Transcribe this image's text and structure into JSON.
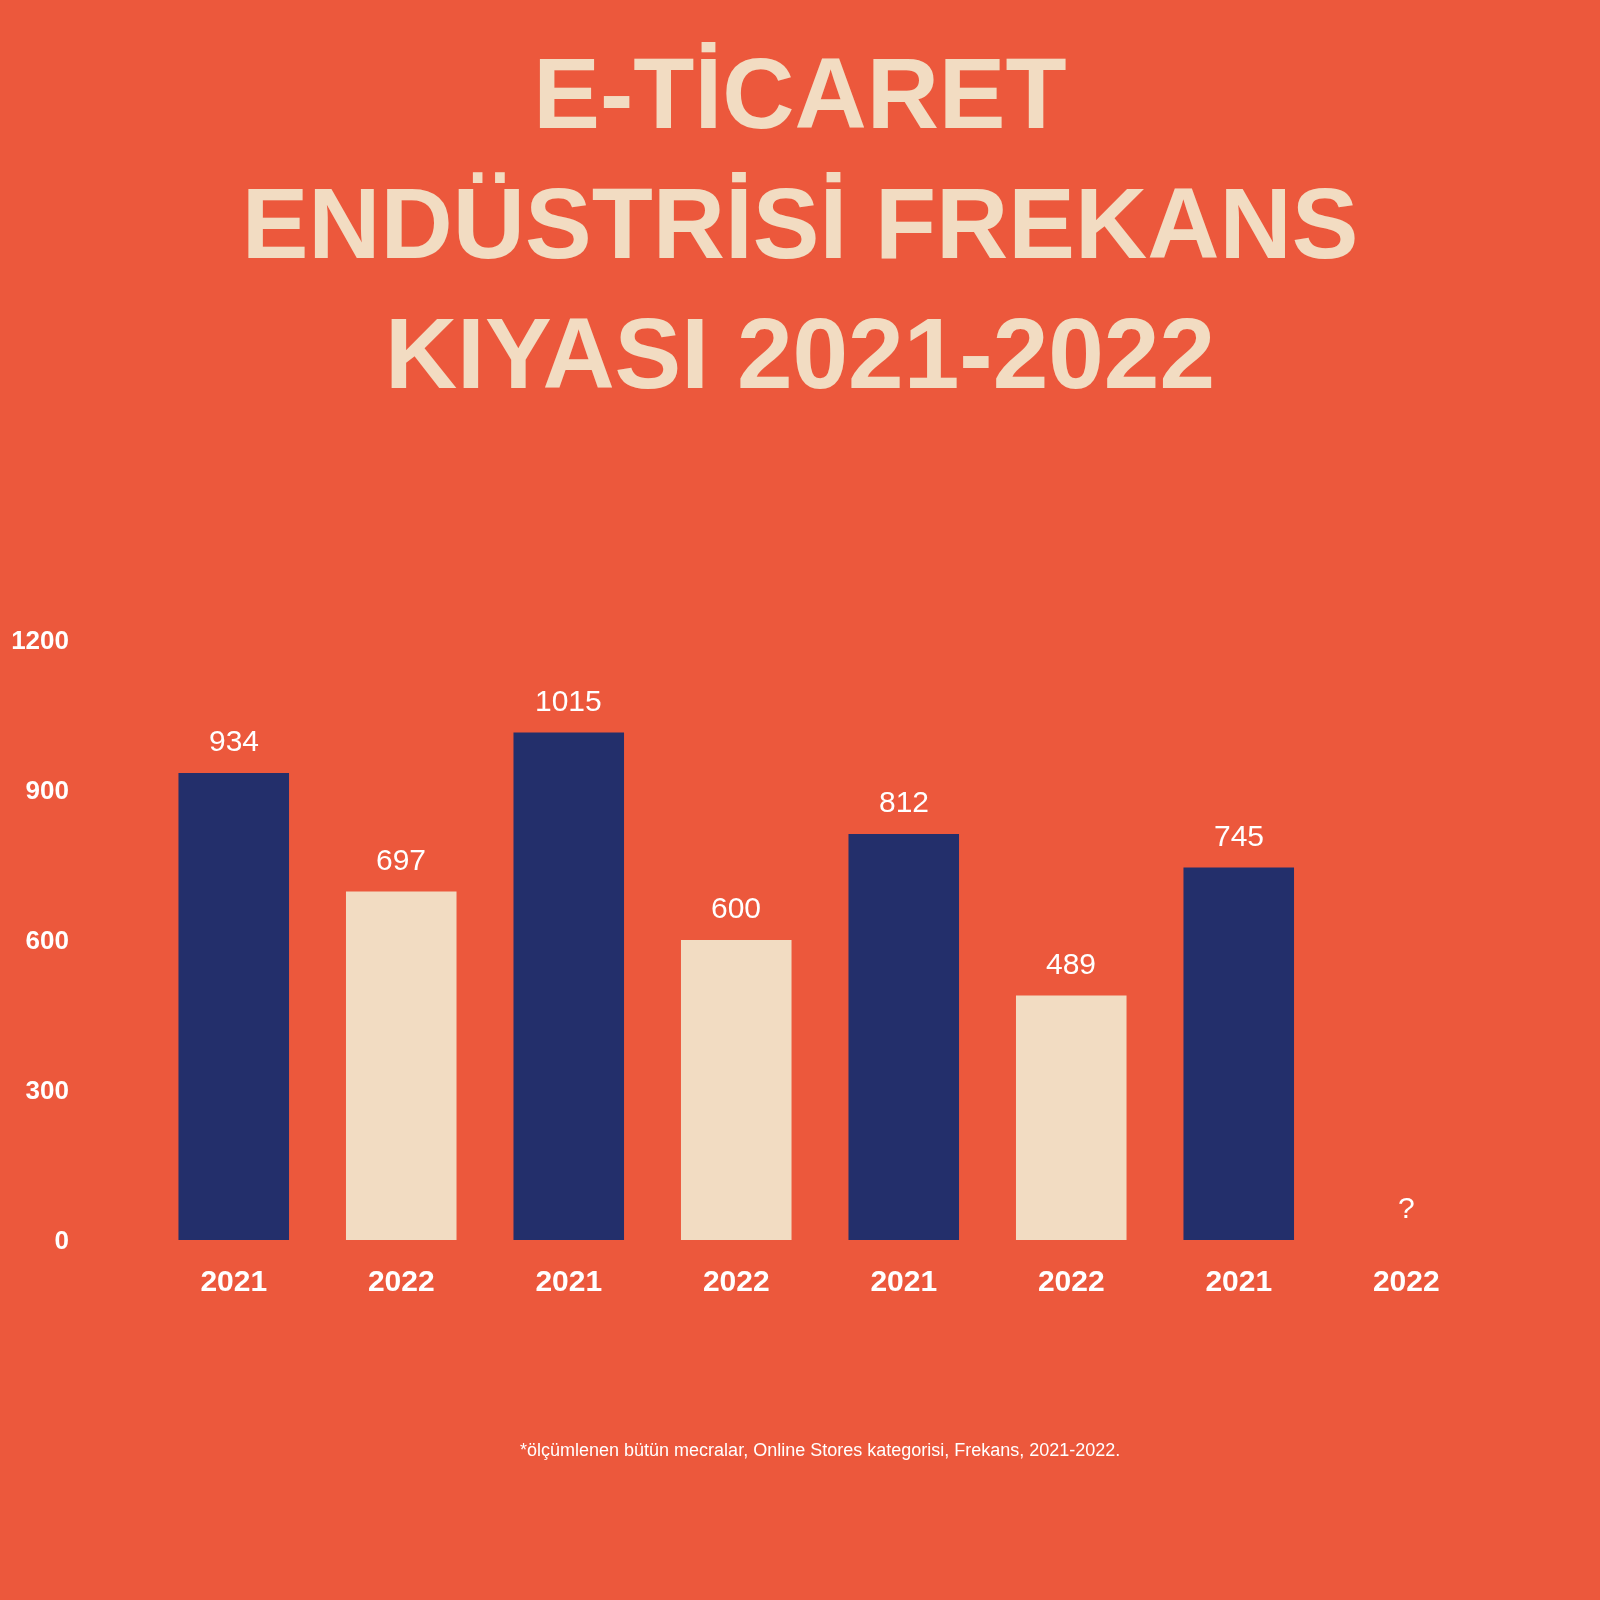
{
  "chart_data": {
    "type": "bar",
    "title": "E-TİCARET\nENDÜSTRİSİ FREKANS\nKIYASI 2021-2022",
    "categories": [
      "2021",
      "2022",
      "2021",
      "2022",
      "2021",
      "2022",
      "2021",
      "2022"
    ],
    "values": [
      934,
      697,
      1015,
      600,
      812,
      489,
      745,
      null
    ],
    "value_labels": [
      "934",
      "697",
      "1015",
      "600",
      "812",
      "489",
      "745",
      "?"
    ],
    "colors": [
      "#232f6b",
      "#f2dcc2",
      "#232f6b",
      "#f2dcc2",
      "#232f6b",
      "#f2dcc2",
      "#232f6b",
      "#f2dcc2"
    ],
    "ylim": [
      0,
      1200
    ],
    "yticks": [
      0,
      300,
      600,
      900,
      1200
    ],
    "grid": false,
    "legend": false,
    "annotations": [
      "*ölçümlenen bütün mecralar, Online Stores kategorisi, Frekans, 2021-2022."
    ]
  }
}
